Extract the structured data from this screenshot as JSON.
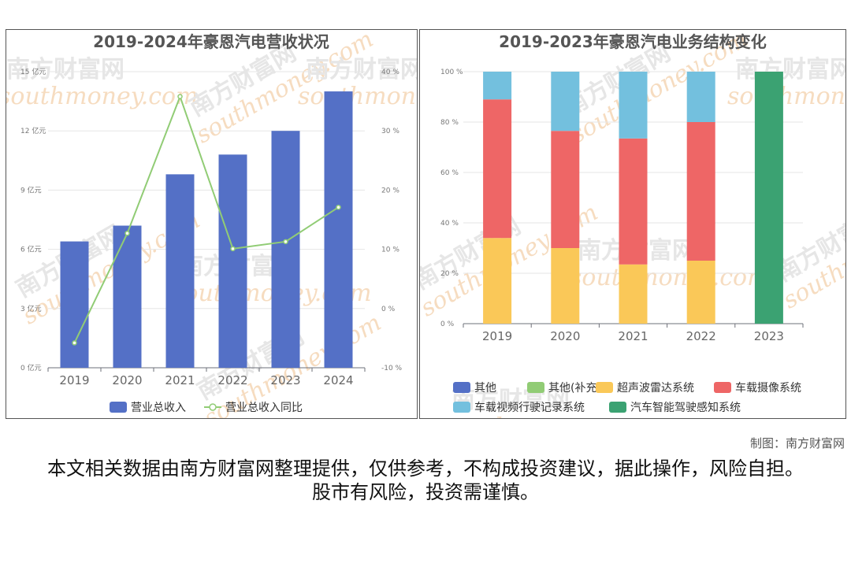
{
  "watermark": {
    "cn": "南方财富网",
    "en": "southmoney.com"
  },
  "credit": "制图：南方财富网",
  "disclaimer": "本文相关数据由南方财富网整理提供，仅供参考，不构成投资建议，据此操作，风险自担。股市有风险，投资需谨慎。",
  "chart_data": [
    {
      "type": "bar",
      "title": "2019-2024年豪恩汽电营收状况",
      "categories": [
        "2019",
        "2020",
        "2021",
        "2022",
        "2023",
        "2024"
      ],
      "series": [
        {
          "name": "营业总收入",
          "type": "bar",
          "axis": "left",
          "color": "#5470c6",
          "values": [
            6.4,
            7.2,
            9.8,
            10.8,
            12.0,
            14.0
          ]
        },
        {
          "name": "营业总收入同比",
          "type": "line",
          "axis": "right",
          "color": "#91cc75",
          "values": [
            -5.8,
            12.7,
            35.8,
            10.1,
            11.3,
            17.1
          ]
        }
      ],
      "y_left": {
        "ylim": [
          0,
          15
        ],
        "ticks": [
          0,
          3,
          6,
          9,
          12,
          15
        ],
        "unit": "亿元"
      },
      "y_right": {
        "ylim": [
          -10,
          40
        ],
        "ticks": [
          -10,
          0,
          10,
          20,
          30,
          40
        ],
        "unit": "%"
      },
      "legend": "bottom"
    },
    {
      "type": "bar",
      "stacked": "percent",
      "title": "2019-2023年豪恩汽电业务结构变化",
      "categories": [
        "2019",
        "2020",
        "2021",
        "2022",
        "2023"
      ],
      "series": [
        {
          "name": "其他",
          "color": "#5470c6",
          "values": [
            0,
            0,
            0,
            0,
            0
          ]
        },
        {
          "name": "其他(补充)",
          "color": "#91cc75",
          "values": [
            0,
            0,
            0,
            0,
            0
          ]
        },
        {
          "name": "超声波雷达系统",
          "color": "#fac858",
          "values": [
            34,
            30,
            23.5,
            25,
            0
          ]
        },
        {
          "name": "车载摄像系统",
          "color": "#ee6666",
          "values": [
            55,
            46.5,
            50,
            55,
            0
          ]
        },
        {
          "name": "车载视频行驶记录系统",
          "color": "#73c0de",
          "values": [
            11,
            23.5,
            26.5,
            20,
            0
          ]
        },
        {
          "name": "汽车智能驾驶感知系统",
          "color": "#3ba272",
          "values": [
            0,
            0,
            0,
            0,
            100
          ]
        }
      ],
      "y": {
        "ylim": [
          0,
          100
        ],
        "ticks": [
          0,
          20,
          40,
          60,
          80,
          100
        ],
        "unit": "%"
      },
      "legend": "bottom"
    }
  ]
}
